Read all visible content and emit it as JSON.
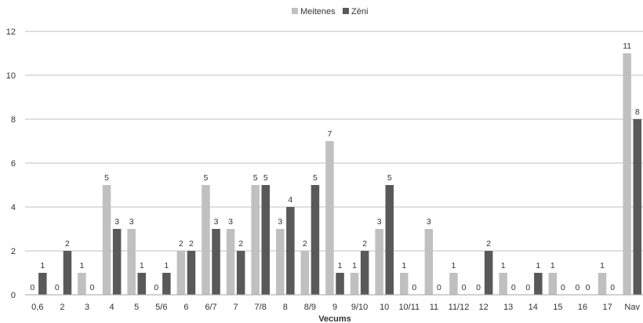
{
  "chart_data": {
    "type": "bar",
    "xlabel": "Vecums",
    "ylabel": "",
    "ylim": [
      0,
      12
    ],
    "yticks": [
      0,
      2,
      4,
      6,
      8,
      10,
      12
    ],
    "grid": true,
    "legend": "top-center",
    "categories": [
      "0,6",
      "2",
      "3",
      "4",
      "5",
      "5/6",
      "6",
      "6/7",
      "7",
      "7/8",
      "8",
      "8/9",
      "9",
      "9/10",
      "10",
      "10/11",
      "11",
      "11/12",
      "12",
      "13",
      "14",
      "15",
      "16",
      "17",
      "Nav"
    ],
    "series": [
      {
        "name": "Meitenes",
        "color": "#c0c0c0",
        "values": [
          0,
          0,
          1,
          5,
          3,
          0,
          2,
          5,
          3,
          5,
          3,
          2,
          7,
          1,
          3,
          1,
          3,
          1,
          0,
          1,
          0,
          1,
          0,
          1,
          11
        ]
      },
      {
        "name": "Zēni",
        "color": "#595959",
        "values": [
          1,
          2,
          0,
          3,
          1,
          1,
          2,
          3,
          2,
          5,
          4,
          5,
          1,
          2,
          5,
          0,
          0,
          0,
          2,
          0,
          1,
          0,
          0,
          0,
          8
        ]
      }
    ]
  }
}
